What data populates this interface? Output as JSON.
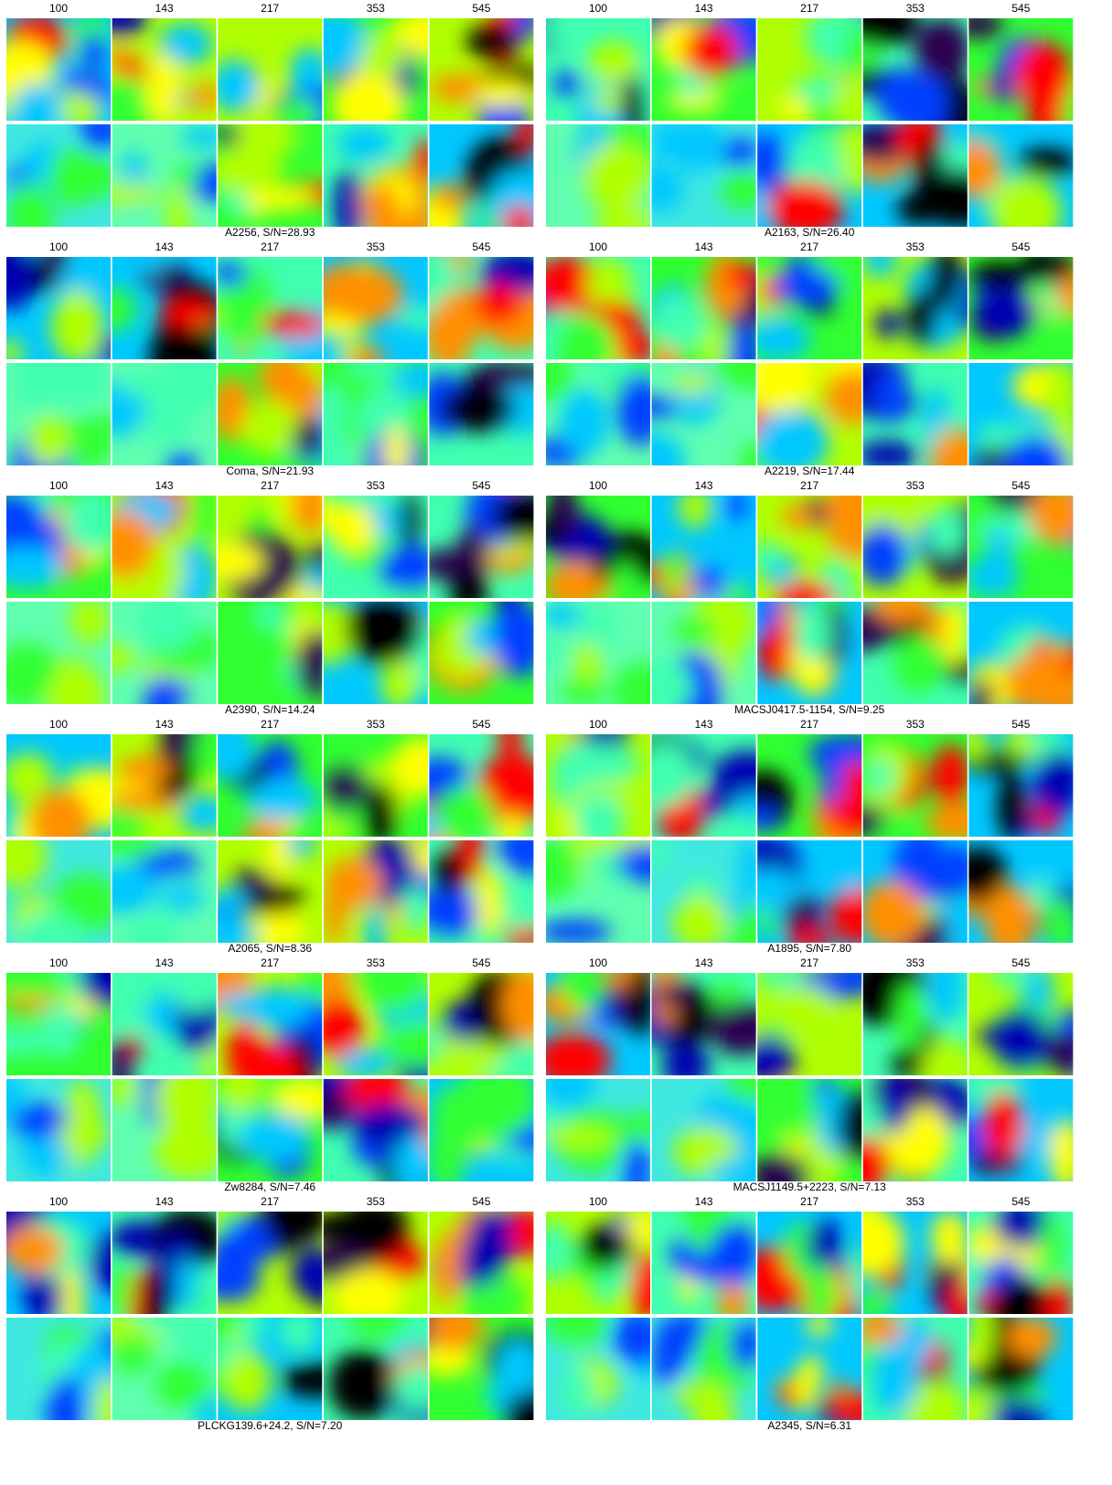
{
  "clusters": [
    {
      "bands": [
        "100",
        "143",
        "217",
        "353",
        "545"
      ],
      "caption": "A2256, S/N=28.93"
    },
    {
      "bands": [
        "100",
        "143",
        "217",
        "353",
        "545"
      ],
      "caption": "A2163, S/N=26.40"
    },
    {
      "bands": [
        "100",
        "143",
        "217",
        "353",
        "545"
      ],
      "caption": "Coma, S/N=21.93"
    },
    {
      "bands": [
        "100",
        "143",
        "217",
        "353",
        "545"
      ],
      "caption": "A2219, S/N=17.44"
    },
    {
      "bands": [
        "100",
        "143",
        "217",
        "353",
        "545"
      ],
      "caption": "A2390, S/N=14.24"
    },
    {
      "bands": [
        "100",
        "143",
        "217",
        "353",
        "545"
      ],
      "caption": "MACSJ0417.5-1154, S/N=9.25"
    },
    {
      "bands": [
        "100",
        "143",
        "217",
        "353",
        "545"
      ],
      "caption": "A2065, S/N=8.36"
    },
    {
      "bands": [
        "100",
        "143",
        "217",
        "353",
        "545"
      ],
      "caption": "A1895, S/N=7.80"
    },
    {
      "bands": [
        "100",
        "143",
        "217",
        "353",
        "545"
      ],
      "caption": "Zw8284, S/N=7.46"
    },
    {
      "bands": [
        "100",
        "143",
        "217",
        "353",
        "545"
      ],
      "caption": "MACSJ1149.5+2223, S/N=7.13"
    },
    {
      "bands": [
        "100",
        "143",
        "217",
        "353",
        "545"
      ],
      "caption": "PLCKG139.6+24.2, S/N=7.20"
    },
    {
      "bands": [
        "100",
        "143",
        "217",
        "353",
        "545"
      ],
      "caption": "A2345, S/N=6.31"
    }
  ]
}
